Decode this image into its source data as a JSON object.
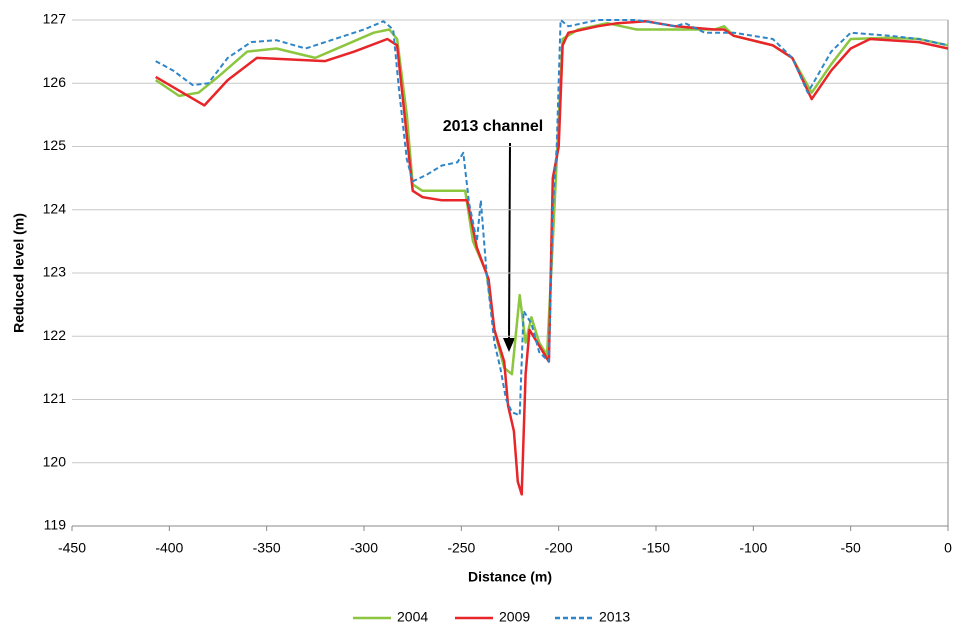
{
  "chart_data": {
    "type": "line",
    "x_label": "Distance (m)",
    "y_label": "Reduced level (m)",
    "annotation": "2013 channel",
    "xlim": [
      -450,
      0
    ],
    "ylim": [
      119,
      127
    ],
    "xticks": [
      -450,
      -400,
      -350,
      -300,
      -250,
      -200,
      -150,
      -100,
      -50,
      0
    ],
    "yticks": [
      119,
      120,
      121,
      122,
      123,
      124,
      125,
      126,
      127
    ],
    "grid": true,
    "legend": "bottom",
    "series": [
      {
        "name": "2004",
        "color": "#8cc63f",
        "dash": false,
        "x": [
          -407,
          -395,
          -385,
          -375,
          -360,
          -345,
          -325,
          -310,
          -295,
          -287,
          -283,
          -278,
          -275,
          -270,
          -260,
          -248,
          -244,
          -237,
          -233,
          -228,
          -224,
          -220,
          -217,
          -214,
          -210,
          -206,
          -203,
          -198,
          -190,
          -175,
          -160,
          -140,
          -120,
          -115,
          -110,
          -90,
          -80,
          -70,
          -60,
          -50,
          -30,
          -15,
          0
        ],
        "values": [
          126.05,
          125.8,
          125.85,
          126.1,
          126.5,
          126.55,
          126.4,
          126.6,
          126.8,
          126.85,
          126.7,
          125.5,
          124.4,
          124.3,
          124.3,
          124.3,
          123.5,
          123.0,
          122.1,
          121.5,
          121.4,
          122.65,
          121.9,
          122.3,
          121.9,
          121.7,
          123.5,
          126.7,
          126.85,
          126.95,
          126.85,
          126.85,
          126.85,
          126.9,
          126.75,
          126.6,
          126.4,
          125.85,
          126.3,
          126.7,
          126.72,
          126.7,
          126.6
        ]
      },
      {
        "name": "2009",
        "color": "#e8262a",
        "dash": false,
        "x": [
          -407,
          -382,
          -370,
          -355,
          -340,
          -320,
          -305,
          -288,
          -283,
          -275,
          -270,
          -260,
          -247,
          -242,
          -236,
          -233,
          -228,
          -226,
          -223,
          -221,
          -219,
          -217,
          -215,
          -210,
          -205,
          -203,
          -200,
          -198,
          -195,
          -180,
          -170,
          -155,
          -140,
          -120,
          -115,
          -110,
          -90,
          -80,
          -70,
          -60,
          -50,
          -40,
          -30,
          -15,
          0
        ],
        "values": [
          126.1,
          125.65,
          126.05,
          126.4,
          126.38,
          126.35,
          126.5,
          126.7,
          126.6,
          124.3,
          124.2,
          124.15,
          124.15,
          123.4,
          122.9,
          122.1,
          121.6,
          120.9,
          120.5,
          119.7,
          119.5,
          121.4,
          122.1,
          121.85,
          121.6,
          124.5,
          125.0,
          126.6,
          126.8,
          126.9,
          126.95,
          126.98,
          126.9,
          126.85,
          126.85,
          126.75,
          126.6,
          126.4,
          125.75,
          126.2,
          126.55,
          126.7,
          126.68,
          126.65,
          126.55
        ]
      },
      {
        "name": "2013",
        "color": "#2e86c8",
        "dash": true,
        "x": [
          -407,
          -398,
          -388,
          -380,
          -370,
          -358,
          -345,
          -330,
          -315,
          -300,
          -290,
          -285,
          -282,
          -278,
          -275,
          -268,
          -260,
          -252,
          -249,
          -246,
          -242,
          -240,
          -237,
          -233,
          -230,
          -227,
          -224,
          -220,
          -218,
          -214,
          -210,
          -205,
          -203,
          -201,
          -199,
          -195,
          -180,
          -160,
          -140,
          -135,
          -125,
          -110,
          -90,
          -80,
          -72,
          -60,
          -50,
          -30,
          -15,
          0
        ],
        "values": [
          126.35,
          126.2,
          125.97,
          126.0,
          126.4,
          126.65,
          126.68,
          126.55,
          126.7,
          126.85,
          126.98,
          126.85,
          125.9,
          124.8,
          124.45,
          124.55,
          124.7,
          124.75,
          124.9,
          124.1,
          123.5,
          124.15,
          123.0,
          121.9,
          121.5,
          121.0,
          120.8,
          120.75,
          122.4,
          122.2,
          121.75,
          121.6,
          124.0,
          125.0,
          127.0,
          126.9,
          127.0,
          127.0,
          126.9,
          126.95,
          126.8,
          126.8,
          126.7,
          126.4,
          125.85,
          126.5,
          126.8,
          126.75,
          126.7,
          126.6
        ]
      }
    ]
  }
}
